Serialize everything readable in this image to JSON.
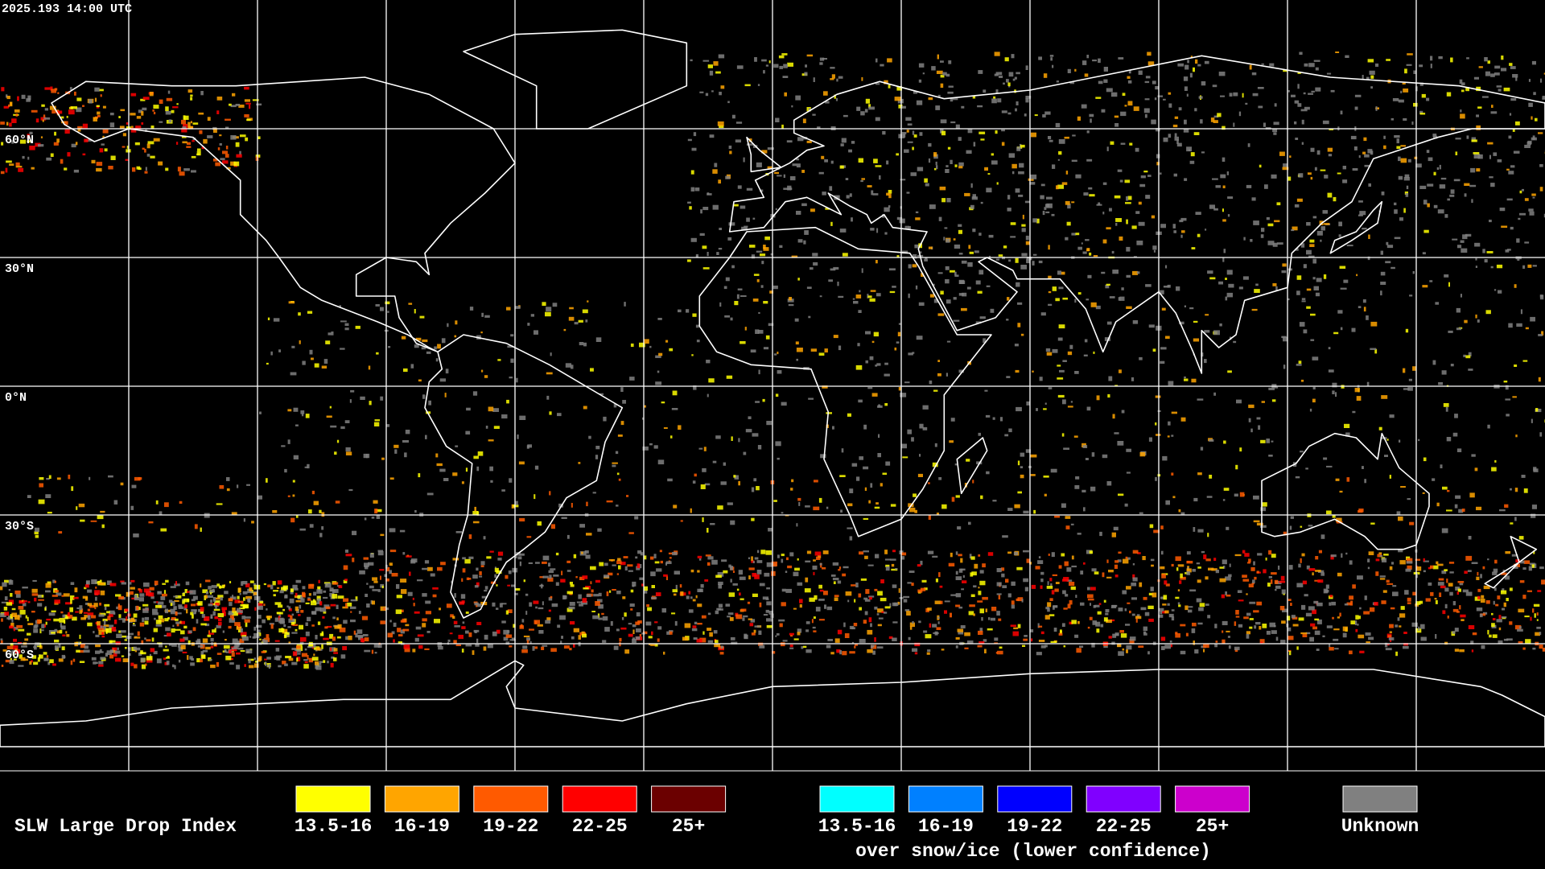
{
  "header": {
    "timestamp": "2025.193 14:00 UTC"
  },
  "grid": {
    "lat_labels": [
      "60°N",
      "30°N",
      "0°N",
      "30°S",
      "60°S"
    ]
  },
  "legend": {
    "title": "SLW Large Drop Index",
    "items": [
      {
        "label": "13.5-16",
        "color": "#ffff00"
      },
      {
        "label": "16-19",
        "color": "#ffa500"
      },
      {
        "label": "19-22",
        "color": "#ff5a00"
      },
      {
        "label": "22-25",
        "color": "#ff0000"
      },
      {
        "label": "25+",
        "color": "#6b0000"
      }
    ],
    "snow_items": [
      {
        "label": "13.5-16",
        "color": "#00ffff"
      },
      {
        "label": "16-19",
        "color": "#0080ff"
      },
      {
        "label": "19-22",
        "color": "#0000ff"
      },
      {
        "label": "22-25",
        "color": "#8000ff"
      },
      {
        "label": "25+",
        "color": "#cc00cc"
      }
    ],
    "snow_note": "over snow/ice (lower confidence)",
    "unknown": {
      "label": "Unknown",
      "color": "#808080"
    }
  }
}
